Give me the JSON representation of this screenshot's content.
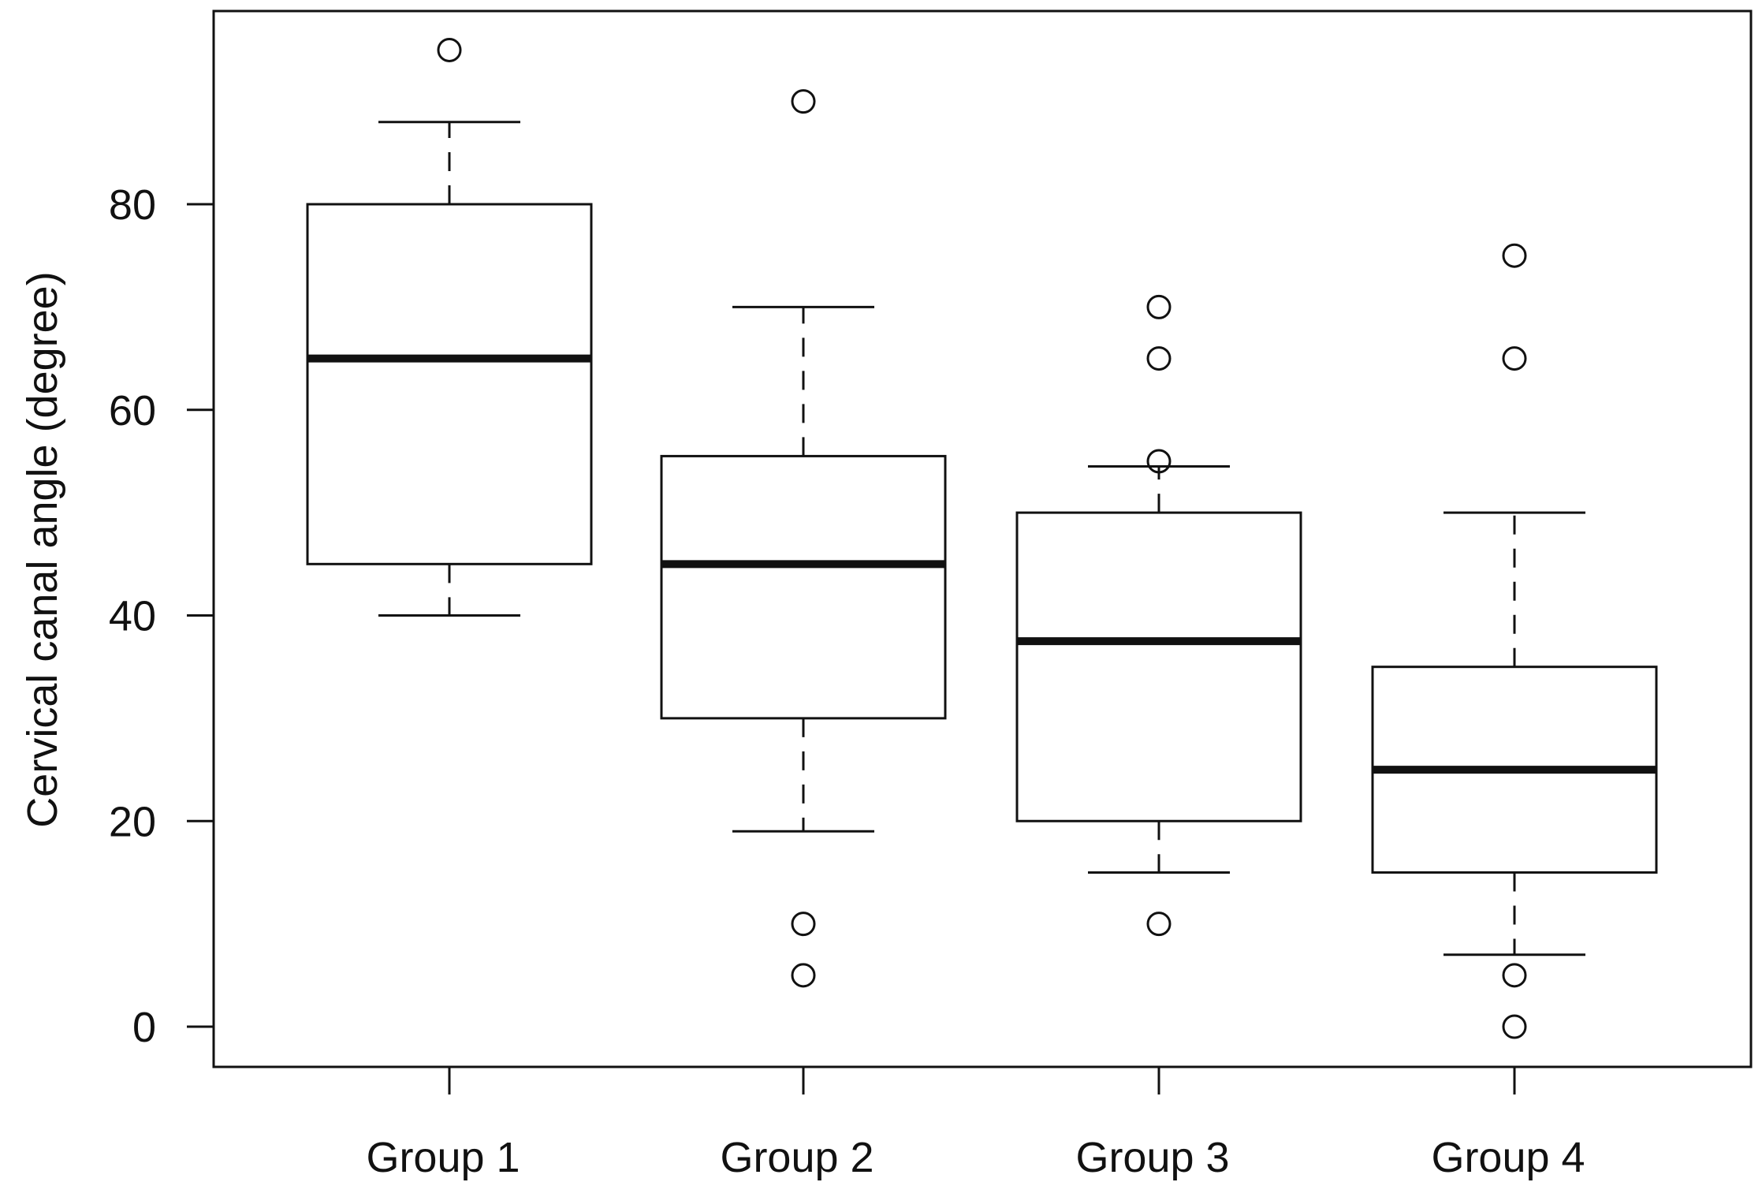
{
  "chart_data": {
    "type": "boxplot",
    "title": "",
    "xlabel": "",
    "ylabel": "Cervical canal angle (degree)",
    "ylim": [
      -4,
      99
    ],
    "yticks": [
      0,
      20,
      40,
      60,
      80
    ],
    "grid": false,
    "legend": "none",
    "categories": [
      "Group 1",
      "Group 2",
      "Group 3",
      "Group 4"
    ],
    "series": [
      {
        "category": "Group 1",
        "whisker_low": 40,
        "q1": 45,
        "median": 65,
        "q3": 80,
        "whisker_high": 88,
        "outliers": [
          95
        ]
      },
      {
        "category": "Group 2",
        "whisker_low": 19,
        "q1": 30,
        "median": 45,
        "q3": 55.5,
        "whisker_high": 70,
        "outliers": [
          90,
          10,
          5
        ]
      },
      {
        "category": "Group 3",
        "whisker_low": 15,
        "q1": 20,
        "median": 37.5,
        "q3": 50,
        "whisker_high": 54.5,
        "outliers": [
          70,
          65,
          55,
          10
        ]
      },
      {
        "category": "Group 4",
        "whisker_low": 7,
        "q1": 15,
        "median": 25,
        "q3": 35,
        "whisker_high": 50,
        "outliers": [
          75,
          65,
          5,
          0
        ]
      }
    ],
    "colors": {
      "box_fill": "#ffffff",
      "stroke": "#111111"
    }
  }
}
